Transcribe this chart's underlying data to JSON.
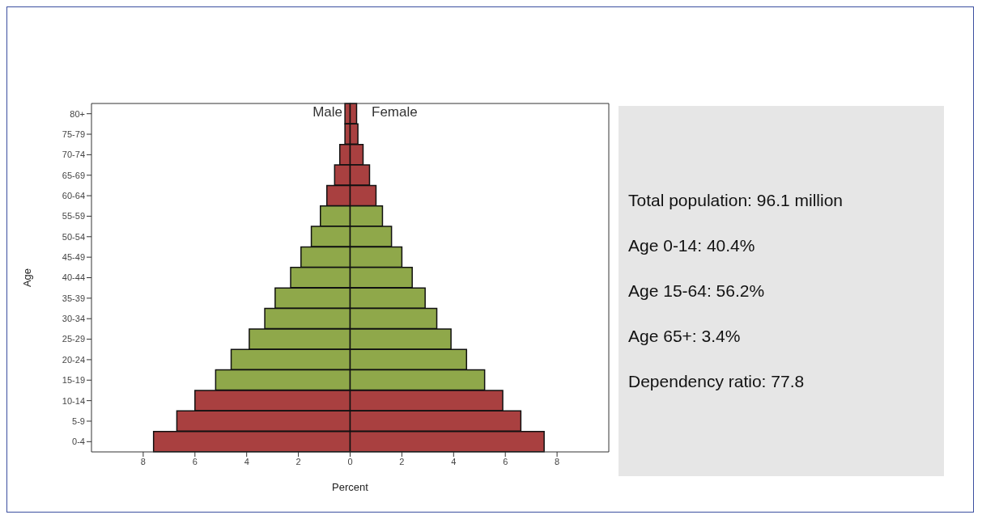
{
  "chart_data": {
    "type": "bar",
    "orientation": "horizontal",
    "stacked": true,
    "xlabel": "Percent",
    "ylabel": "Age",
    "categories": [
      "80+",
      "75-79",
      "70-74",
      "65-69",
      "60-64",
      "55-59",
      "50-54",
      "45-49",
      "40-44",
      "35-39",
      "30-34",
      "25-29",
      "20-24",
      "15-19",
      "10-14",
      "5-9",
      "0-4"
    ],
    "series": [
      {
        "name": "Male",
        "colors": [
          "#a94040",
          "#a94040",
          "#a94040",
          "#a94040",
          "#a94040",
          "#8fa84a",
          "#8fa84a",
          "#8fa84a",
          "#8fa84a",
          "#8fa84a",
          "#8fa84a",
          "#8fa84a",
          "#8fa84a",
          "#8fa84a",
          "#a94040",
          "#a94040",
          "#a94040"
        ],
        "values": [
          -0.2,
          -0.2,
          -0.4,
          -0.6,
          -0.9,
          -1.15,
          -1.5,
          -1.9,
          -2.3,
          -2.9,
          -3.3,
          -3.9,
          -4.6,
          -5.2,
          -6.0,
          -6.7,
          -7.6
        ]
      },
      {
        "name": "Female",
        "colors": [
          "#a94040",
          "#a94040",
          "#a94040",
          "#a94040",
          "#a94040",
          "#8fa84a",
          "#8fa84a",
          "#8fa84a",
          "#8fa84a",
          "#8fa84a",
          "#8fa84a",
          "#8fa84a",
          "#8fa84a",
          "#8fa84a",
          "#a94040",
          "#a94040",
          "#a94040"
        ],
        "values": [
          0.25,
          0.3,
          0.5,
          0.75,
          1.0,
          1.25,
          1.6,
          2.0,
          2.4,
          2.9,
          3.35,
          3.9,
          4.5,
          5.2,
          5.9,
          6.6,
          7.5
        ]
      }
    ],
    "xlim": [
      -10,
      10
    ],
    "xticks": [
      {
        "value": -8,
        "label": "8"
      },
      {
        "value": -6,
        "label": "6"
      },
      {
        "value": -4,
        "label": "4"
      },
      {
        "value": -2,
        "label": "2"
      },
      0,
      2,
      4,
      6,
      8
    ],
    "grid": false,
    "legend": false,
    "annotations": [
      "Total population: 96.1 million",
      "Age 0-14: 40.4%",
      "Age 15-64: 56.2%",
      "Age 65+: 3.4%",
      "Dependency ratio: 77.8"
    ]
  }
}
